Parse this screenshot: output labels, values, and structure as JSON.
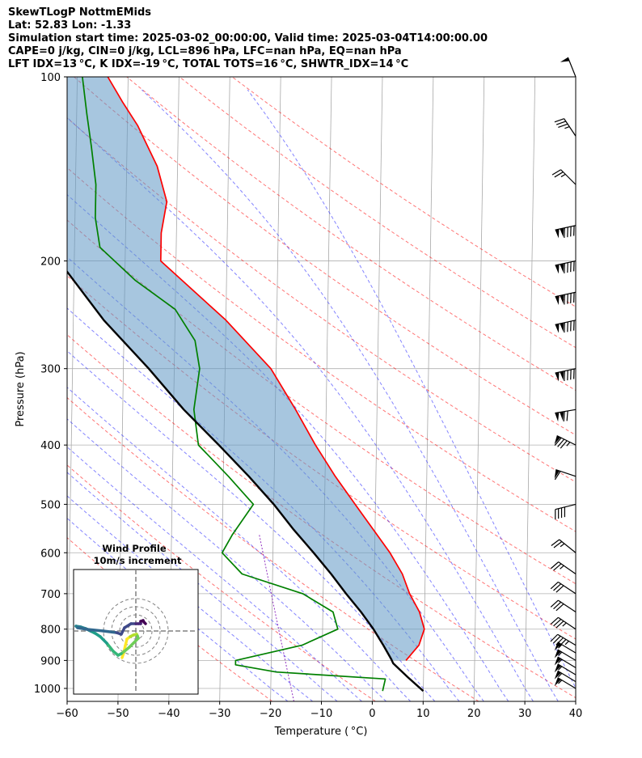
{
  "header": {
    "title": "SkewTLogP NottmEMids",
    "location": "Lat: 52.83   Lon: -1.33",
    "times": "Simulation start time: 2025-03-02_00:00:00, Valid time: 2025-03-04T14:00:00.00",
    "params1": "CAPE=0 j/kg, CIN=0 j/kg, LCL=896 hPa, LFC=nan hPa, EQ=nan hPa",
    "params2": "LFT IDX=13 °C, K IDX=-19 °C, TOTAL TOTS=16 °C, SHWTR_IDX=14 °C"
  },
  "chart_data": {
    "type": "skewt",
    "title": "SkewTLogP NottmEMids",
    "xlabel": "Temperature ( °C)",
    "ylabel": "Pressure (hPa)",
    "xlim": [
      -60,
      40
    ],
    "ylim": [
      1050,
      100
    ],
    "x_ticks": [
      -60,
      -50,
      -40,
      -30,
      -20,
      -10,
      0,
      10,
      20,
      30,
      40
    ],
    "y_ticks": [
      1000,
      900,
      800,
      700,
      600,
      500,
      400,
      300,
      200,
      100
    ],
    "series": [
      {
        "name": "temperature",
        "color": "#ff0000",
        "points": [
          [
            900,
            6.5
          ],
          [
            850,
            9
          ],
          [
            800,
            10
          ],
          [
            750,
            9
          ],
          [
            700,
            7
          ],
          [
            650,
            5.5
          ],
          [
            600,
            3
          ],
          [
            500,
            -4
          ],
          [
            450,
            -8
          ],
          [
            400,
            -12
          ],
          [
            350,
            -16
          ],
          [
            300,
            -21
          ],
          [
            250,
            -30
          ],
          [
            200,
            -43
          ],
          [
            180,
            -43
          ],
          [
            160,
            -42
          ],
          [
            140,
            -44
          ],
          [
            120,
            -48
          ],
          [
            110,
            -51
          ],
          [
            100,
            -54
          ]
        ]
      },
      {
        "name": "dewpoint",
        "color": "#008000",
        "points": [
          [
            1010,
            2
          ],
          [
            965,
            2.5
          ],
          [
            940,
            -19
          ],
          [
            915,
            -27
          ],
          [
            900,
            -27
          ],
          [
            850,
            -14
          ],
          [
            800,
            -7
          ],
          [
            750,
            -8
          ],
          [
            700,
            -14
          ],
          [
            650,
            -26
          ],
          [
            600,
            -30
          ],
          [
            560,
            -28
          ],
          [
            500,
            -24
          ],
          [
            450,
            -29
          ],
          [
            400,
            -35
          ],
          [
            350,
            -36
          ],
          [
            300,
            -35
          ],
          [
            270,
            -36
          ],
          [
            240,
            -40
          ],
          [
            215,
            -48
          ],
          [
            190,
            -55
          ],
          [
            170,
            -56
          ],
          [
            150,
            -56
          ],
          [
            130,
            -57
          ],
          [
            115,
            -58
          ],
          [
            100,
            -59
          ]
        ]
      },
      {
        "name": "parcel",
        "color": "#000000",
        "points": [
          [
            1010,
            10
          ],
          [
            960,
            7
          ],
          [
            910,
            4
          ],
          [
            896,
            3.6
          ],
          [
            850,
            2
          ],
          [
            800,
            0
          ],
          [
            750,
            -2.5
          ],
          [
            700,
            -5.5
          ],
          [
            650,
            -8.5
          ],
          [
            600,
            -12
          ],
          [
            550,
            -16
          ],
          [
            500,
            -20
          ],
          [
            450,
            -25
          ],
          [
            400,
            -31
          ],
          [
            350,
            -38
          ],
          [
            300,
            -45
          ],
          [
            250,
            -54
          ],
          [
            200,
            -63
          ],
          [
            150,
            -75
          ],
          [
            120,
            -84
          ],
          [
            100,
            -91
          ]
        ]
      }
    ],
    "wind_barbs": [
      {
        "p": 1000,
        "u": -25,
        "v": -15
      },
      {
        "p": 975,
        "u": -25,
        "v": -15
      },
      {
        "p": 950,
        "u": -25,
        "v": -15
      },
      {
        "p": 925,
        "u": -25,
        "v": -15
      },
      {
        "p": 900,
        "u": -25,
        "v": -15
      },
      {
        "p": 875,
        "u": -25,
        "v": -15
      },
      {
        "p": 850,
        "u": -20,
        "v": -12
      },
      {
        "p": 800,
        "u": -15,
        "v": -10
      },
      {
        "p": 750,
        "u": -12,
        "v": -8
      },
      {
        "p": 700,
        "u": -12,
        "v": -8
      },
      {
        "p": 650,
        "u": -10,
        "v": -7
      },
      {
        "p": 600,
        "u": -10,
        "v": -8
      },
      {
        "p": 500,
        "u": -20,
        "v": 5
      },
      {
        "p": 450,
        "u": -30,
        "v": -10
      },
      {
        "p": 400,
        "u": -40,
        "v": -20
      },
      {
        "p": 350,
        "u": -60,
        "v": 10
      },
      {
        "p": 300,
        "u": -70,
        "v": 15
      },
      {
        "p": 250,
        "u": -70,
        "v": 15
      },
      {
        "p": 225,
        "u": -70,
        "v": 15
      },
      {
        "p": 200,
        "u": -70,
        "v": 15
      },
      {
        "p": 175,
        "u": -70,
        "v": 15
      },
      {
        "p": 150,
        "u": -10,
        "v": -10
      },
      {
        "p": 125,
        "u": -10,
        "v": -15
      },
      {
        "p": 100,
        "u": -10,
        "v": -25
      }
    ],
    "hodograph": {
      "title": "Wind Profile",
      "subtitle": "10m/s increment",
      "rings": [
        10,
        20,
        30
      ],
      "points": [
        [
          -17,
          -33
        ],
        [
          -15,
          -27
        ],
        [
          -13,
          -18
        ],
        [
          -11,
          -10
        ],
        [
          -7,
          -7
        ],
        [
          -3,
          -5
        ],
        [
          1,
          -4
        ],
        [
          2,
          -6
        ],
        [
          3,
          -9
        ],
        [
          -8,
          -20
        ],
        [
          -14,
          -25
        ],
        [
          -18,
          -28
        ],
        [
          -22,
          -30
        ],
        [
          -28,
          -25
        ],
        [
          -36,
          -15
        ],
        [
          -44,
          -7
        ],
        [
          -50,
          -3
        ],
        [
          -56,
          0
        ],
        [
          -62,
          3
        ],
        [
          -68,
          5
        ],
        [
          -74,
          6
        ],
        [
          -72,
          4
        ],
        [
          -60,
          2
        ],
        [
          -40,
          0
        ],
        [
          -24,
          -2
        ],
        [
          -18,
          -4
        ],
        [
          -14,
          4
        ],
        [
          -6,
          9
        ],
        [
          0,
          9
        ],
        [
          3,
          9
        ],
        [
          6,
          9
        ],
        [
          6,
          12
        ],
        [
          9,
          13
        ],
        [
          10,
          11
        ],
        [
          12,
          9
        ]
      ]
    }
  }
}
